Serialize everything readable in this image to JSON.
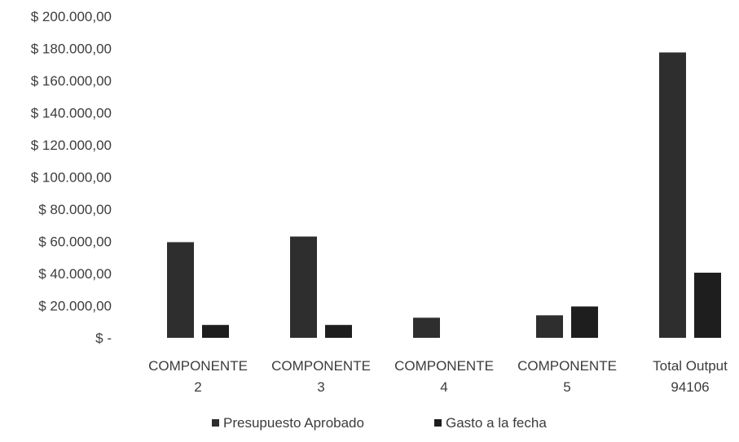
{
  "chart_data": {
    "type": "bar",
    "categories": [
      [
        "COMPONENTE",
        "2"
      ],
      [
        "COMPONENTE",
        "3"
      ],
      [
        "COMPONENTE",
        "4"
      ],
      [
        "COMPONENTE",
        "5"
      ],
      [
        "Total Output",
        "94106"
      ]
    ],
    "series": [
      {
        "name": "Presupuesto Aprobado",
        "color": "#2e2e2e",
        "values": [
          59500,
          63000,
          12500,
          14000,
          177500
        ]
      },
      {
        "name": "Gasto a la fecha",
        "color": "#1e1e1e",
        "values": [
          8000,
          8000,
          0,
          19500,
          40500
        ]
      }
    ],
    "ylim": [
      0,
      200000
    ],
    "ytick_labels": [
      "$ -",
      "$ 20.000,00",
      "$ 40.000,00",
      "$ 60.000,00",
      "$ 80.000,00",
      "$ 100.000,00",
      "$ 120.000,00",
      "$ 140.000,00",
      "$ 160.000,00",
      "$ 180.000,00",
      "$ 200.000,00"
    ],
    "grid": false,
    "legend_position": "bottom",
    "title": "",
    "xlabel": "",
    "ylabel": ""
  }
}
